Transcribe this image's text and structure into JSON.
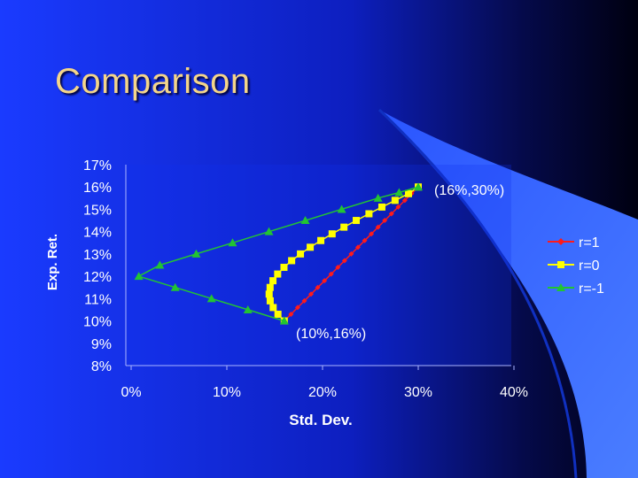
{
  "slide": {
    "title": "Comparison",
    "colors": {
      "background_left": "#1a3bff",
      "background_right": "#000010",
      "swoosh": "#3b6cff",
      "title": "#f4d58a"
    }
  },
  "chart_data": {
    "type": "line",
    "title": "",
    "xlabel": "Std. Dev.",
    "ylabel": "Exp. Ret.",
    "xlim": [
      0,
      40
    ],
    "ylim": [
      8,
      17
    ],
    "x_ticks": [
      "0%",
      "10%",
      "20%",
      "30%",
      "40%"
    ],
    "y_ticks": [
      "17%",
      "16%",
      "15%",
      "14%",
      "13%",
      "12%",
      "11%",
      "10%",
      "9%",
      "8%"
    ],
    "legend_position": "right",
    "annotations": [
      {
        "text": "(16%,30%)",
        "x": 30,
        "y": 16
      },
      {
        "text": "(10%,16%)",
        "x": 16,
        "y": 10
      }
    ],
    "series": [
      {
        "name": "r=1",
        "color": "#ff1a1a",
        "marker": "diamond",
        "x": [
          16,
          16.7,
          17.4,
          18.1,
          18.8,
          19.5,
          20.2,
          20.9,
          21.6,
          22.3,
          23,
          23.7,
          24.4,
          25.1,
          25.8,
          26.5,
          27.2,
          27.9,
          28.6,
          29.3,
          30
        ],
        "y": [
          10,
          10.3,
          10.6,
          10.9,
          11.2,
          11.5,
          11.8,
          12.1,
          12.4,
          12.7,
          13,
          13.3,
          13.6,
          13.9,
          14.2,
          14.5,
          14.8,
          15.1,
          15.4,
          15.7,
          16
        ]
      },
      {
        "name": "r=0",
        "color": "#ffff00",
        "marker": "square",
        "x": [
          16,
          15.34,
          14.84,
          14.53,
          14.42,
          14.52,
          14.82,
          15.31,
          15.97,
          16.77,
          17.69,
          18.71,
          19.82,
          21.0,
          22.24,
          23.52,
          24.85,
          26.2,
          27.58,
          28.98,
          30
        ],
        "y": [
          10,
          10.3,
          10.6,
          10.9,
          11.2,
          11.5,
          11.8,
          12.1,
          12.4,
          12.7,
          13,
          13.3,
          13.6,
          13.9,
          14.2,
          14.5,
          14.8,
          15.1,
          15.4,
          15.7,
          16
        ]
      },
      {
        "name": "r=-1",
        "color": "#22c433",
        "marker": "triangle",
        "x": [
          16,
          12.2,
          8.4,
          4.6,
          0.8,
          3.0,
          6.8,
          10.6,
          14.4,
          18.2,
          22,
          25.8,
          28,
          30
        ],
        "y": [
          10,
          10.5,
          11.0,
          11.5,
          12.0,
          12.5,
          13.0,
          13.5,
          14.0,
          14.5,
          15.0,
          15.5,
          15.75,
          16
        ]
      }
    ]
  }
}
